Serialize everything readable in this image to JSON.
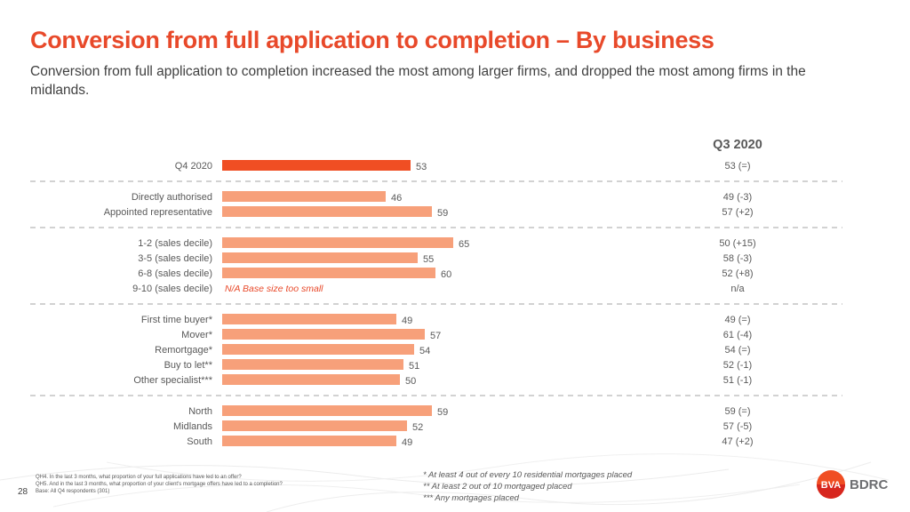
{
  "header": {
    "title": "Conversion from full application to completion – By business",
    "subtitle": "Conversion from full application to completion increased the most among larger firms, and dropped the most among firms in the midlands."
  },
  "chart_data": {
    "type": "bar",
    "orientation": "horizontal",
    "comparison_header": "Q3 2020",
    "rows": [
      {
        "label": "Q4 2020",
        "value": 53,
        "value_label": "53",
        "comparison": "53 (=)",
        "group": 0,
        "highlight": true
      },
      {
        "label": "Directly authorised",
        "value": 46,
        "value_label": "46",
        "comparison": "49 (-3)",
        "group": 1
      },
      {
        "label": "Appointed representative",
        "value": 59,
        "value_label": "59",
        "comparison": "57 (+2)",
        "group": 1
      },
      {
        "label": "1-2 (sales decile)",
        "value": 65,
        "value_label": "65",
        "comparison": "50 (+15)",
        "group": 2
      },
      {
        "label": "3-5 (sales decile)",
        "value": 55,
        "value_label": "55",
        "comparison": "58 (-3)",
        "group": 2
      },
      {
        "label": "6-8 (sales decile)",
        "value": 60,
        "value_label": "60",
        "comparison": "52 (+8)",
        "group": 2
      },
      {
        "label": "9-10 (sales decile)",
        "value": null,
        "value_label": "N/A Base size too small",
        "comparison": "n/a",
        "group": 2
      },
      {
        "label": "First time buyer*",
        "value": 49,
        "value_label": "49",
        "comparison": "49 (=)",
        "group": 3
      },
      {
        "label": "Mover*",
        "value": 57,
        "value_label": "57",
        "comparison": "61 (-4)",
        "group": 3
      },
      {
        "label": "Remortgage*",
        "value": 54,
        "value_label": "54",
        "comparison": "54 (=)",
        "group": 3
      },
      {
        "label": "Buy to let**",
        "value": 51,
        "value_label": "51",
        "comparison": "52 (-1)",
        "group": 3
      },
      {
        "label": "Other specialist***",
        "value": 50,
        "value_label": "50",
        "comparison": "51 (-1)",
        "group": 3
      },
      {
        "label": "North",
        "value": 59,
        "value_label": "59",
        "comparison": "59 (=)",
        "group": 4
      },
      {
        "label": "Midlands",
        "value": 52,
        "value_label": "52",
        "comparison": "57 (-5)",
        "group": 4
      },
      {
        "label": "South",
        "value": 49,
        "value_label": "49",
        "comparison": "47 (+2)",
        "group": 4
      }
    ],
    "colors": {
      "highlight": "#f04e23",
      "bar": "#f7a07a",
      "na_text": "#e8492a",
      "divider": "#a6a6a6"
    }
  },
  "footnotes": {
    "questions": [
      "QH4. In the last 3 months, what proportion of your full applications have led to an offer?",
      "QH5. And in the last 3 months, what proportion of your client's mortgage offers have led to a completion?",
      "Base: All Q4 respondents (301)"
    ],
    "page_number": "28",
    "notes": [
      "* At least 4 out of every 10 residential mortgages placed",
      "** At least 2 out of 10 mortgaged placed",
      "*** Any mortgages placed"
    ]
  },
  "logo": {
    "left": "BVA",
    "right": "BDRC",
    "colors": {
      "orange": "#f04e23",
      "red": "#d7261e",
      "gray": "#6d6e71"
    }
  }
}
